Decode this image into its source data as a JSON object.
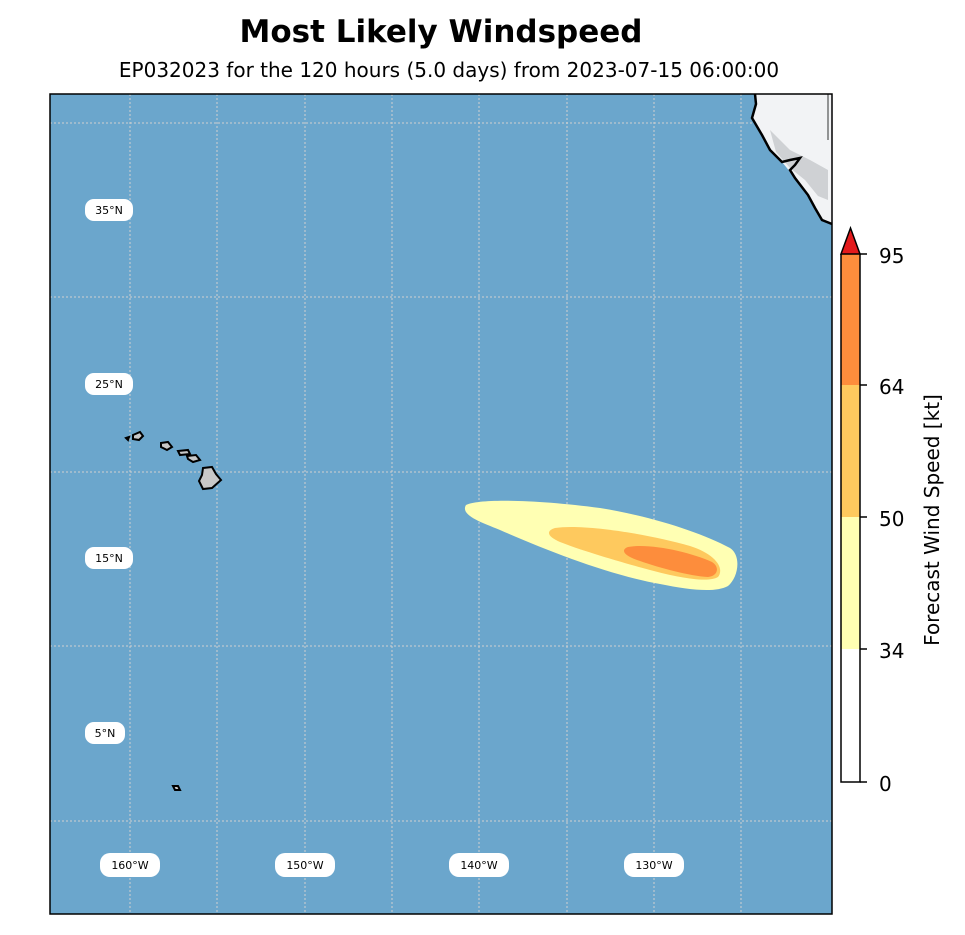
{
  "title": "Most Likely Windspeed",
  "subtitle": "EP032023 for the 120 hours (5.0 days) from 2023-07-15 06:00:00",
  "map": {
    "ocean_color": "#6ba6cc",
    "land_color": "#c8c8c8",
    "lat_labels": [
      "35°N",
      "25°N",
      "15°N",
      "5°N"
    ],
    "lon_labels": [
      "160°W",
      "150°W",
      "140°W",
      "130°W"
    ]
  },
  "colorbar": {
    "label": "Forecast Wind Speed [kt]",
    "ticks": [
      "0",
      "34",
      "50",
      "64",
      "95"
    ],
    "levels": [
      {
        "from": 0,
        "to": 34,
        "color": "#ffffff"
      },
      {
        "from": 34,
        "to": 50,
        "color": "#ffffb3"
      },
      {
        "from": 50,
        "to": 64,
        "color": "#fec95e"
      },
      {
        "from": 64,
        "to": 95,
        "color": "#fd8d3c"
      }
    ],
    "extend_color": "#e31a1c"
  },
  "chart_data": {
    "type": "heatmap",
    "title": "Most Likely Windspeed",
    "subtitle": "EP032023 for the 120 hours (5.0 days) from 2023-07-15 06:00:00",
    "colorbar_label": "Forecast Wind Speed [kt]",
    "levels": [
      0,
      34,
      50,
      64,
      95
    ],
    "swath": {
      "34kt": {
        "lon_range": [
          -139,
          -124
        ],
        "lat_range": [
          13,
          17.5
        ]
      },
      "50kt": {
        "lon_range": [
          -135,
          -125
        ],
        "lat_range": [
          14,
          16
        ]
      },
      "64kt": {
        "lon_range": [
          -131,
          -126
        ],
        "lat_range": [
          14,
          15
        ]
      }
    }
  }
}
